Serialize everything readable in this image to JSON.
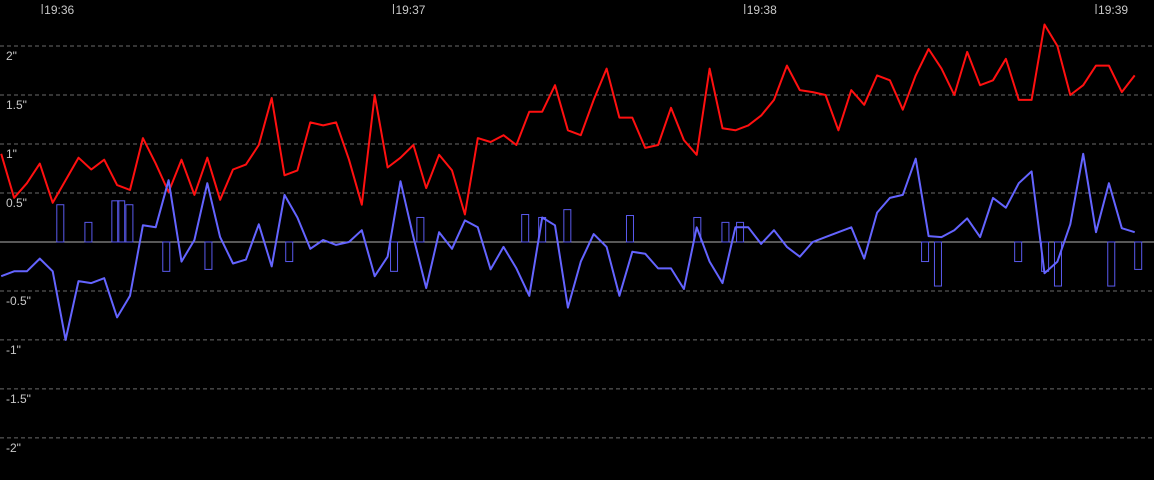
{
  "chart_data": {
    "type": "line",
    "background": "#000000",
    "grid": true,
    "xlim": [
      -7.2,
      189.9
    ],
    "xticks": [
      {
        "value": 0,
        "label": "19:36"
      },
      {
        "value": 60,
        "label": "19:37"
      },
      {
        "value": 120,
        "label": "19:38"
      },
      {
        "value": 180,
        "label": "19:39"
      }
    ],
    "ylim": [
      -2.43,
      2.47
    ],
    "yticks": [
      {
        "value": 2,
        "label": "2\""
      },
      {
        "value": 1.5,
        "label": "1.5\""
      },
      {
        "value": 1,
        "label": "1\""
      },
      {
        "value": 0.5,
        "label": "0.5\""
      },
      {
        "value": -0.5,
        "label": "-0.5\""
      },
      {
        "value": -1,
        "label": "-1\""
      },
      {
        "value": -1.5,
        "label": "-1.5\""
      },
      {
        "value": -2,
        "label": "-2\""
      }
    ],
    "x": [
      -7,
      -4.8,
      -2.6,
      -0.4,
      1.8,
      4,
      6.2,
      8.4,
      10.6,
      12.8,
      15,
      17.2,
      19.4,
      21.6,
      23.8,
      26,
      28.2,
      30.4,
      32.6,
      34.8,
      37,
      39.2,
      41.4,
      43.6,
      45.8,
      48,
      50.2,
      52.4,
      54.6,
      56.8,
      59,
      61.2,
      63.4,
      65.6,
      67.8,
      70,
      72.2,
      74.4,
      76.6,
      78.8,
      81,
      83.2,
      85.4,
      87.6,
      89.8,
      92,
      94.2,
      96.4,
      98.6,
      100.8,
      103,
      105.2,
      107.4,
      109.6,
      111.8,
      114,
      116.2,
      118.4,
      120.6,
      122.8,
      125,
      127.2,
      129.4,
      131.6,
      133.8,
      136,
      138.2,
      140.4,
      142.6,
      144.8,
      147,
      149.2,
      151.4,
      153.6,
      155.8,
      158,
      160.2,
      162.4,
      164.6,
      166.8,
      169,
      171.2,
      173.4,
      175.6,
      177.8,
      180,
      182.2,
      184.4,
      186.6
    ],
    "series": [
      {
        "color": "#ff1010",
        "values": [
          0.9,
          0.45,
          0.6,
          0.8,
          0.4,
          0.63,
          0.86,
          0.74,
          0.84,
          0.58,
          0.53,
          1.06,
          0.8,
          0.51,
          0.84,
          0.48,
          0.86,
          0.43,
          0.74,
          0.79,
          0.99,
          1.47,
          0.68,
          0.73,
          1.22,
          1.19,
          1.22,
          0.84,
          0.38,
          1.5,
          0.76,
          0.86,
          0.99,
          0.55,
          0.89,
          0.73,
          0.28,
          1.06,
          1.02,
          1.09,
          0.99,
          1.33,
          1.33,
          1.6,
          1.14,
          1.09,
          1.45,
          1.77,
          1.27,
          1.27,
          0.96,
          0.99,
          1.37,
          1.04,
          0.89,
          1.77,
          1.16,
          1.14,
          1.19,
          1.29,
          1.45,
          1.8,
          1.55,
          1.53,
          1.5,
          1.14,
          1.55,
          1.4,
          1.7,
          1.65,
          1.35,
          1.7,
          1.97,
          1.77,
          1.5,
          1.94,
          1.6,
          1.65,
          1.87,
          1.45,
          1.45,
          2.22,
          2.0,
          1.5,
          1.6,
          1.8,
          1.8,
          1.53,
          1.7
        ]
      },
      {
        "color": "#6464ff",
        "values": [
          -0.35,
          -0.3,
          -0.3,
          -0.17,
          -0.3,
          -1.0,
          -0.4,
          -0.42,
          -0.37,
          -0.77,
          -0.55,
          0.17,
          0.15,
          0.63,
          -0.2,
          0.02,
          0.6,
          0.05,
          -0.22,
          -0.18,
          0.18,
          -0.25,
          0.48,
          0.25,
          -0.07,
          0.02,
          -0.03,
          0.0,
          0.12,
          -0.35,
          -0.15,
          0.62,
          0.05,
          -0.47,
          0.1,
          -0.07,
          0.22,
          0.15,
          -0.28,
          -0.05,
          -0.27,
          -0.55,
          0.25,
          0.17,
          -0.67,
          -0.2,
          0.08,
          -0.05,
          -0.55,
          -0.1,
          -0.12,
          -0.27,
          -0.27,
          -0.48,
          0.15,
          -0.2,
          -0.42,
          0.15,
          0.15,
          -0.02,
          0.12,
          -0.05,
          -0.15,
          0.0,
          0.05,
          0.1,
          0.15,
          -0.17,
          0.3,
          0.45,
          0.48,
          0.85,
          0.06,
          0.05,
          0.12,
          0.24,
          0.05,
          0.45,
          0.35,
          0.6,
          0.72,
          -0.32,
          -0.2,
          0.18,
          0.9,
          0.1,
          0.6,
          0.14,
          0.1
        ]
      },
      {
        "type": "bar",
        "color": "#5a5aee",
        "x": [
          3.1,
          7.9,
          12.5,
          13.5,
          14.9,
          21.2,
          28.4,
          42.2,
          60.1,
          64.6,
          82.5,
          85.4,
          89.7,
          100.4,
          111.9,
          116.7,
          119.2,
          150.8,
          153.0,
          166.7,
          171.3,
          173.5,
          182.6,
          187.2
        ],
        "values": [
          0.38,
          0.2,
          0.42,
          0.42,
          0.38,
          -0.3,
          -0.28,
          -0.2,
          -0.3,
          0.25,
          0.28,
          0.25,
          0.33,
          0.27,
          0.25,
          0.2,
          0.2,
          -0.2,
          -0.45,
          -0.2,
          -0.3,
          -0.45,
          -0.45,
          -0.28
        ]
      }
    ]
  }
}
